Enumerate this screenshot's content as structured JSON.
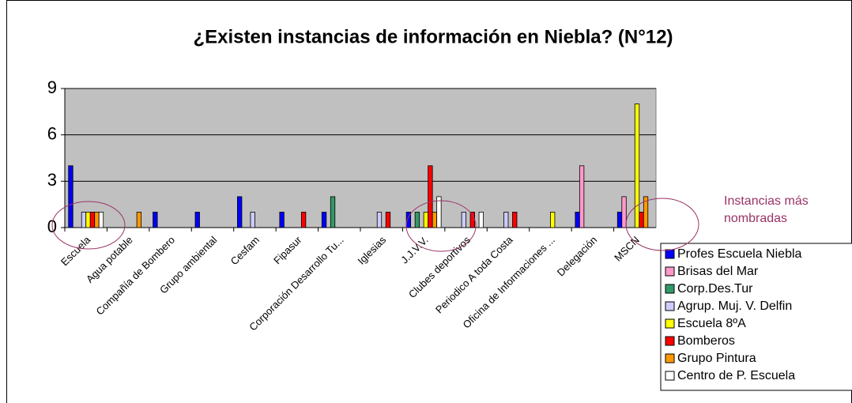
{
  "chart_data": {
    "type": "bar",
    "title": "¿Existen instancias de información en Niebla? (N°12)",
    "annotation": "Instancias más nombradas",
    "categories": [
      "Escuela",
      "Agua potable",
      "Compañía de Bombero",
      "Grupo ambiental",
      "Cesfam",
      "Fipasur",
      "Corporación Desarrollo Tu...",
      "Iglesias",
      "J.J.V.V.",
      "Clubes deportivos",
      "Periodico A toda Costa",
      "Oficina de Informaciones ...",
      "Delegación",
      "MSCN"
    ],
    "series": [
      {
        "name": "Profes Escuela Niebla",
        "color": "#0000ff",
        "values": [
          4,
          0,
          1,
          1,
          2,
          1,
          1,
          0,
          1,
          0,
          0,
          0,
          1,
          1
        ]
      },
      {
        "name": "Brisas del Mar",
        "color": "#ff99cc",
        "values": [
          0,
          0,
          0,
          0,
          0,
          0,
          0,
          0,
          0,
          0,
          0,
          0,
          4,
          2
        ]
      },
      {
        "name": "Corp.Des.Tur",
        "color": "#339966",
        "values": [
          0,
          0,
          0,
          0,
          0,
          0,
          2,
          0,
          1,
          0,
          0,
          0,
          0,
          0
        ]
      },
      {
        "name": "Agrup. Muj. V. Delfin",
        "color": "#ccccff",
        "values": [
          1,
          0,
          0,
          0,
          1,
          0,
          0,
          1,
          0,
          1,
          1,
          0,
          0,
          0
        ]
      },
      {
        "name": "Escuela 8ºA",
        "color": "#ffff00",
        "values": [
          1,
          0,
          0,
          0,
          0,
          0,
          0,
          0,
          1,
          0,
          0,
          1,
          0,
          8
        ]
      },
      {
        "name": "Bomberos",
        "color": "#ff0000",
        "values": [
          1,
          0,
          0,
          0,
          0,
          1,
          0,
          1,
          4,
          1,
          1,
          0,
          0,
          1
        ]
      },
      {
        "name": "Grupo Pintura",
        "color": "#ff9900",
        "values": [
          1,
          1,
          0,
          0,
          0,
          0,
          0,
          0,
          1,
          0,
          0,
          0,
          0,
          2
        ]
      },
      {
        "name": "Centro de P. Escuela",
        "color": "#ffffff",
        "values": [
          1,
          0,
          0,
          0,
          0,
          0,
          0,
          0,
          2,
          1,
          0,
          0,
          0,
          0
        ]
      }
    ],
    "ylim": [
      0,
      9
    ],
    "yticks": [
      0,
      3,
      6,
      9
    ],
    "grid": true,
    "legend": "bottom-right"
  }
}
